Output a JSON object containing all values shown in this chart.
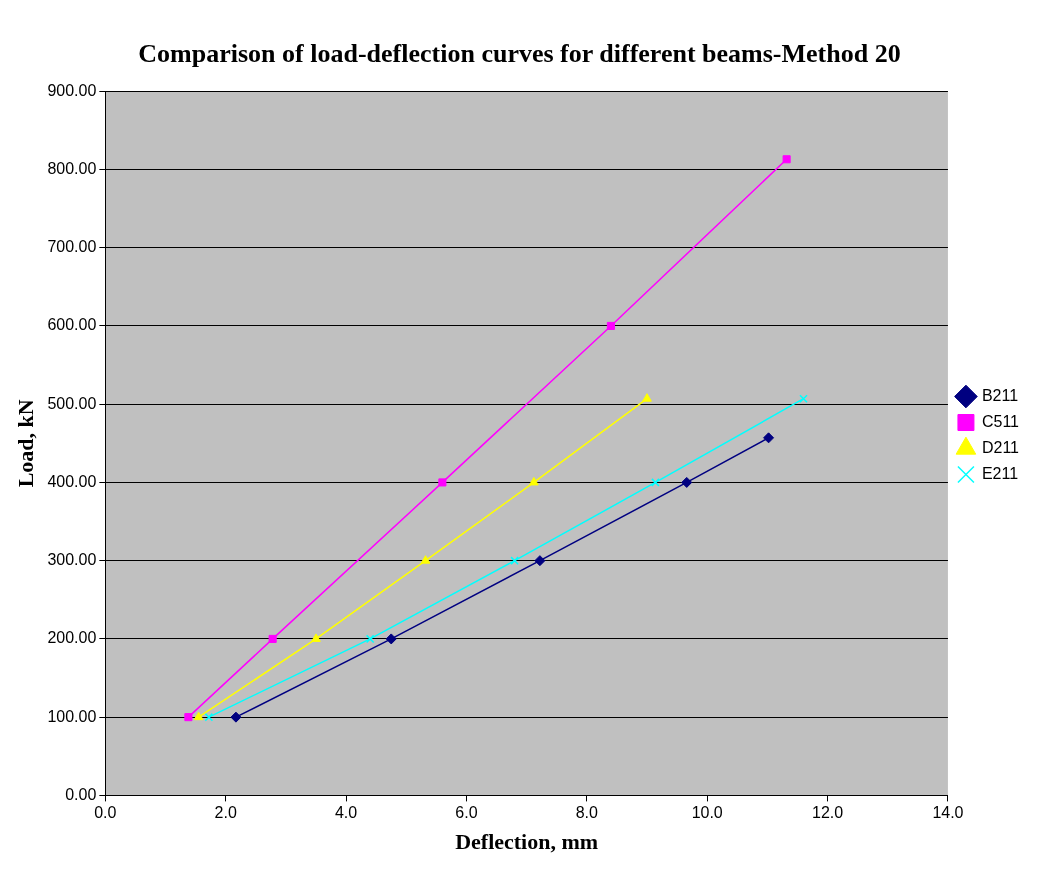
{
  "chart_data": {
    "type": "line",
    "title": "Comparison of load-deflection curves for different beams-Method 20",
    "xlabel": "Deflection, mm",
    "ylabel": "Load, kN",
    "xlim": [
      0,
      14
    ],
    "xticks": [
      {
        "value": 0,
        "label": "0.0"
      },
      {
        "value": 2,
        "label": "2.0"
      },
      {
        "value": 4,
        "label": "4.0"
      },
      {
        "value": 6,
        "label": "6.0"
      },
      {
        "value": 8,
        "label": "8.0"
      },
      {
        "value": 10,
        "label": "10.0"
      },
      {
        "value": 12,
        "label": "12.0"
      },
      {
        "value": 14,
        "label": "14.0"
      }
    ],
    "ylim": [
      0,
      900
    ],
    "yticks": [
      {
        "value": 0,
        "label": "0.00"
      },
      {
        "value": 100,
        "label": "100.00"
      },
      {
        "value": 200,
        "label": "200.00"
      },
      {
        "value": 300,
        "label": "300.00"
      },
      {
        "value": 400,
        "label": "400.00"
      },
      {
        "value": 500,
        "label": "500.00"
      },
      {
        "value": 600,
        "label": "600.00"
      },
      {
        "value": 700,
        "label": "700.00"
      },
      {
        "value": 800,
        "label": "800.00"
      },
      {
        "value": 900,
        "label": "900.00"
      }
    ],
    "grid": "y",
    "legend": "right",
    "line_style": "solid",
    "series": [
      {
        "name": "B211",
        "color": "#000080",
        "marker": "diamond",
        "x": [
          2.17,
          4.75,
          7.22,
          9.66,
          11.02
        ],
        "values": [
          100,
          200,
          300,
          400,
          457
        ]
      },
      {
        "name": "C511",
        "color": "#ff00ff",
        "marker": "square",
        "x": [
          1.38,
          2.78,
          5.6,
          8.4,
          11.32
        ],
        "values": [
          100,
          200,
          400,
          600,
          813
        ]
      },
      {
        "name": "D211",
        "color": "#ffff00",
        "marker": "triangle",
        "x": [
          1.55,
          3.5,
          5.32,
          7.12,
          9.0
        ],
        "values": [
          100,
          200,
          300,
          400,
          507
        ]
      },
      {
        "name": "E211",
        "color": "#00ffff",
        "marker": "cross",
        "x": [
          1.72,
          4.4,
          6.8,
          9.14,
          11.6
        ],
        "values": [
          100,
          200,
          300,
          400,
          507
        ]
      }
    ]
  }
}
